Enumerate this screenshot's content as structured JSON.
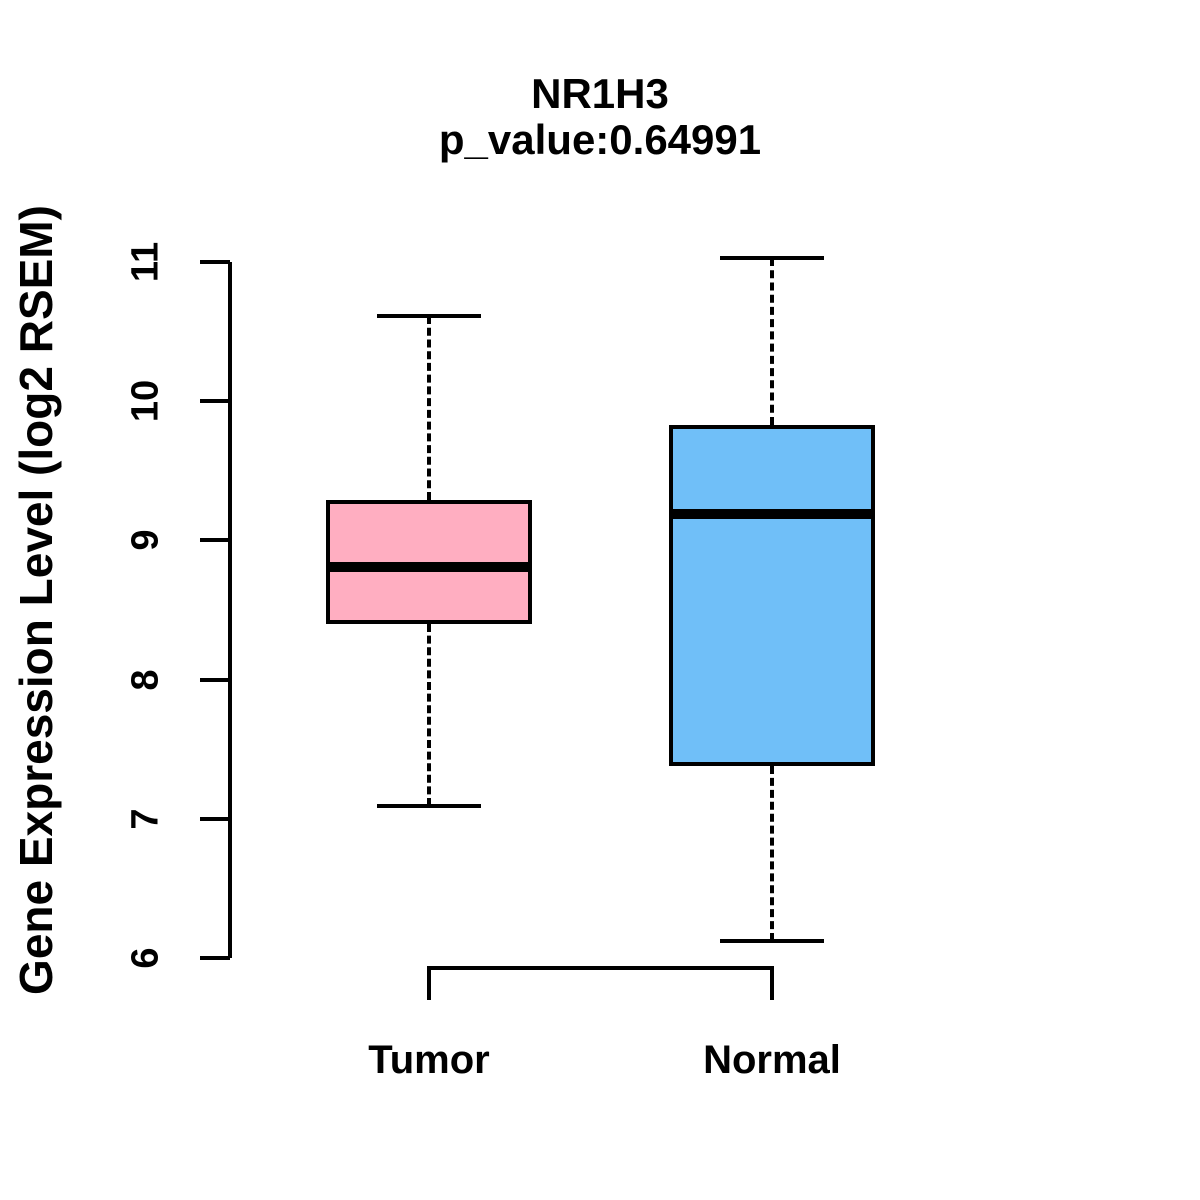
{
  "title": "NR1H3",
  "subtitle": "p_value:0.64991",
  "ylabel": "Gene Expression Level (log2 RSEM)",
  "colors": {
    "tumor_fill": "#FFAEC1",
    "normal_fill": "#70BFF8",
    "line": "#000000",
    "background": "#FFFFFF"
  },
  "chart_data": {
    "type": "boxplot",
    "title": "NR1H3",
    "subtitle": "p_value:0.64991",
    "xlabel": "",
    "ylabel": "Gene Expression Level (log2 RSEM)",
    "categories": [
      "Tumor",
      "Normal"
    ],
    "series": [
      {
        "name": "Tumor",
        "whisker_low": 7.09,
        "q1": 8.4,
        "median": 8.81,
        "q3": 9.29,
        "whisker_high": 10.61,
        "fill": "#FFAEC1"
      },
      {
        "name": "Normal",
        "whisker_low": 6.12,
        "q1": 7.38,
        "median": 9.19,
        "q3": 9.83,
        "whisker_high": 11.03,
        "fill": "#70BFF8"
      }
    ],
    "yticks": [
      6,
      7,
      8,
      9,
      10,
      11
    ],
    "ylim": [
      6,
      11
    ],
    "grid": false,
    "legend": "none",
    "whisker_style": "dashed"
  }
}
